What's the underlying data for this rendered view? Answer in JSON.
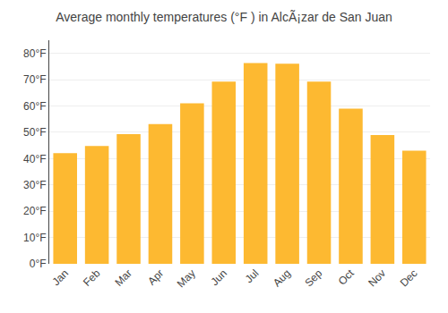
{
  "chart_data": {
    "type": "bar",
    "title": "Average monthly temperatures (°F ) in AlcÃ¡zar de San Juan",
    "categories": [
      "Jan",
      "Feb",
      "Mar",
      "Apr",
      "May",
      "Jun",
      "Jul",
      "Aug",
      "Sep",
      "Oct",
      "Nov",
      "Dec"
    ],
    "values": [
      42.1,
      44.8,
      49.3,
      53.1,
      61.0,
      69.3,
      76.3,
      76.1,
      69.3,
      59.0,
      49.0,
      43.0
    ],
    "color": "#FDB931",
    "ylim": [
      0,
      85
    ],
    "yticks": [
      {
        "value": 0,
        "label": "0°F"
      },
      {
        "value": 10,
        "label": "10°F"
      },
      {
        "value": 20,
        "label": "20°F"
      },
      {
        "value": 30,
        "label": "30°F"
      },
      {
        "value": 40,
        "label": "40°F"
      },
      {
        "value": 50,
        "label": "50°F"
      },
      {
        "value": 60,
        "label": "60°F"
      },
      {
        "value": 70,
        "label": "70°F"
      },
      {
        "value": 80,
        "label": "80°F"
      }
    ],
    "grid": true
  }
}
